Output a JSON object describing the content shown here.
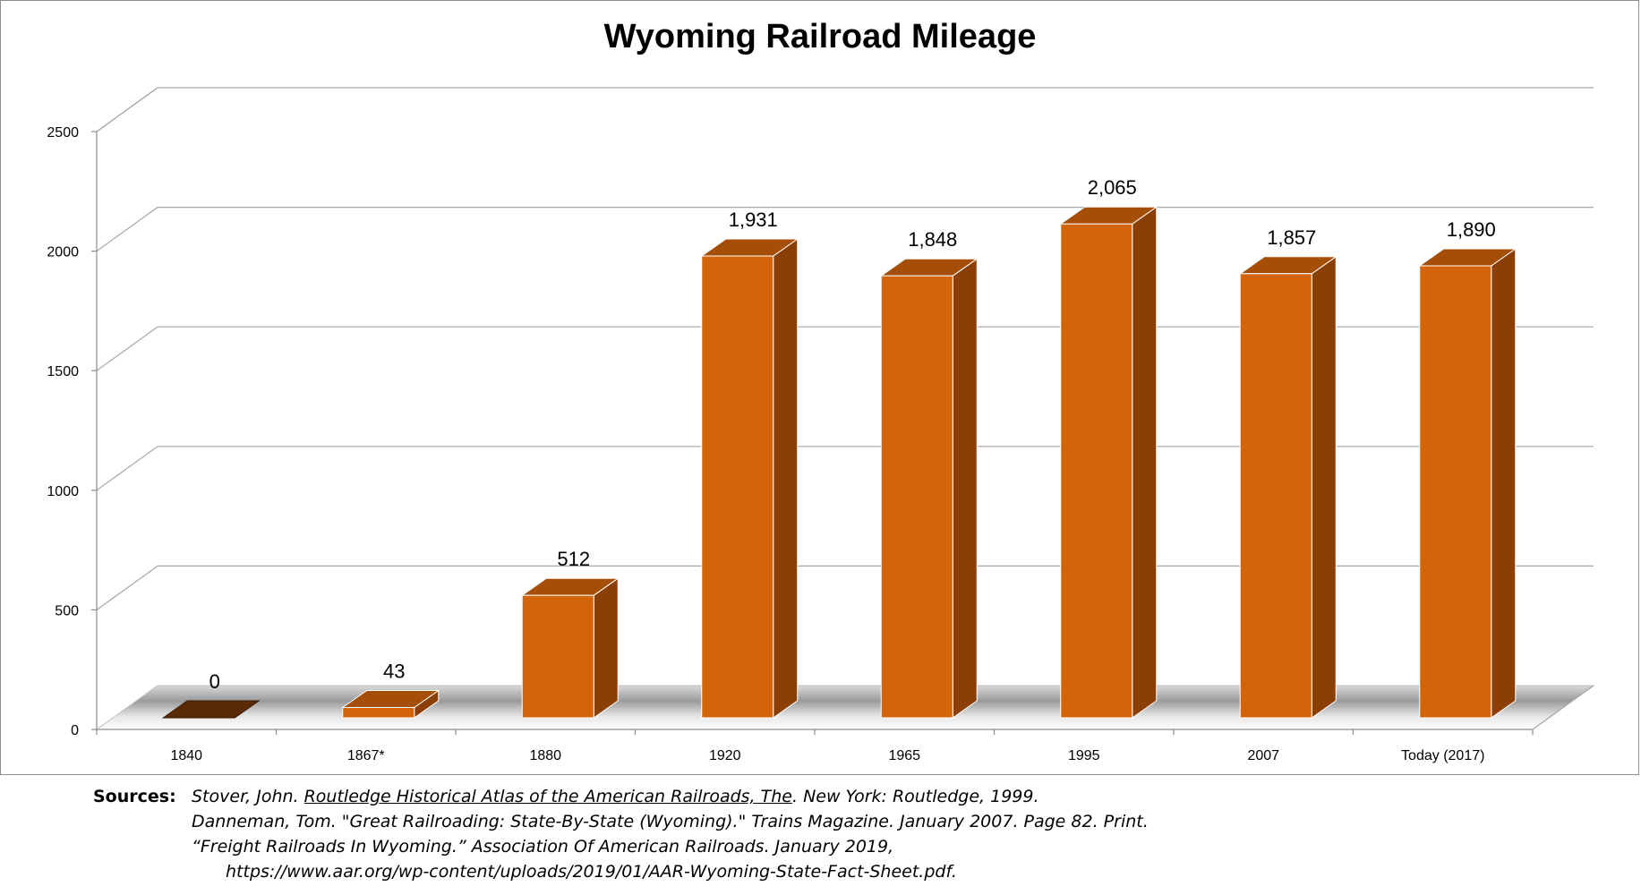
{
  "chart_data": {
    "type": "bar",
    "title": "Wyoming Railroad Mileage",
    "categories": [
      "1840",
      "1867*",
      "1880",
      "1920",
      "1965",
      "1995",
      "2007",
      "Today  (2017)"
    ],
    "values": [
      0,
      43,
      512,
      1931,
      1848,
      2065,
      1857,
      1890
    ],
    "data_labels": [
      "0",
      "43",
      "512",
      "1,931",
      "1,848",
      "2,065",
      "1,857",
      "1,890"
    ],
    "y_ticks": [
      0,
      500,
      1000,
      1500,
      2000,
      2500
    ],
    "ylim": [
      0,
      2500
    ],
    "grid": true,
    "style": "3d-column",
    "colors": {
      "bar_front": "#d4640a",
      "bar_side": "#8c3f05",
      "bar_top": "#a54e07",
      "zero_bar": "#5a2a05"
    }
  },
  "sources": {
    "label": "Sources:",
    "line1_pre": "Stover, John. ",
    "line1_title": "Routledge Historical Atlas of the American Railroads, The",
    "line1_post": ". New York: Routledge, 1999.",
    "line2": "Danneman, Tom. \"Great Railroading: State-By-State (Wyoming).\" Trains Magazine. January 2007. Page 82. Print.",
    "line3": "“Freight Railroads In Wyoming.” Association Of American Railroads. January 2019,",
    "line4": "https://www.aar.org/wp-content/uploads/2019/01/AAR-Wyoming-State-Fact-Sheet.pdf."
  }
}
